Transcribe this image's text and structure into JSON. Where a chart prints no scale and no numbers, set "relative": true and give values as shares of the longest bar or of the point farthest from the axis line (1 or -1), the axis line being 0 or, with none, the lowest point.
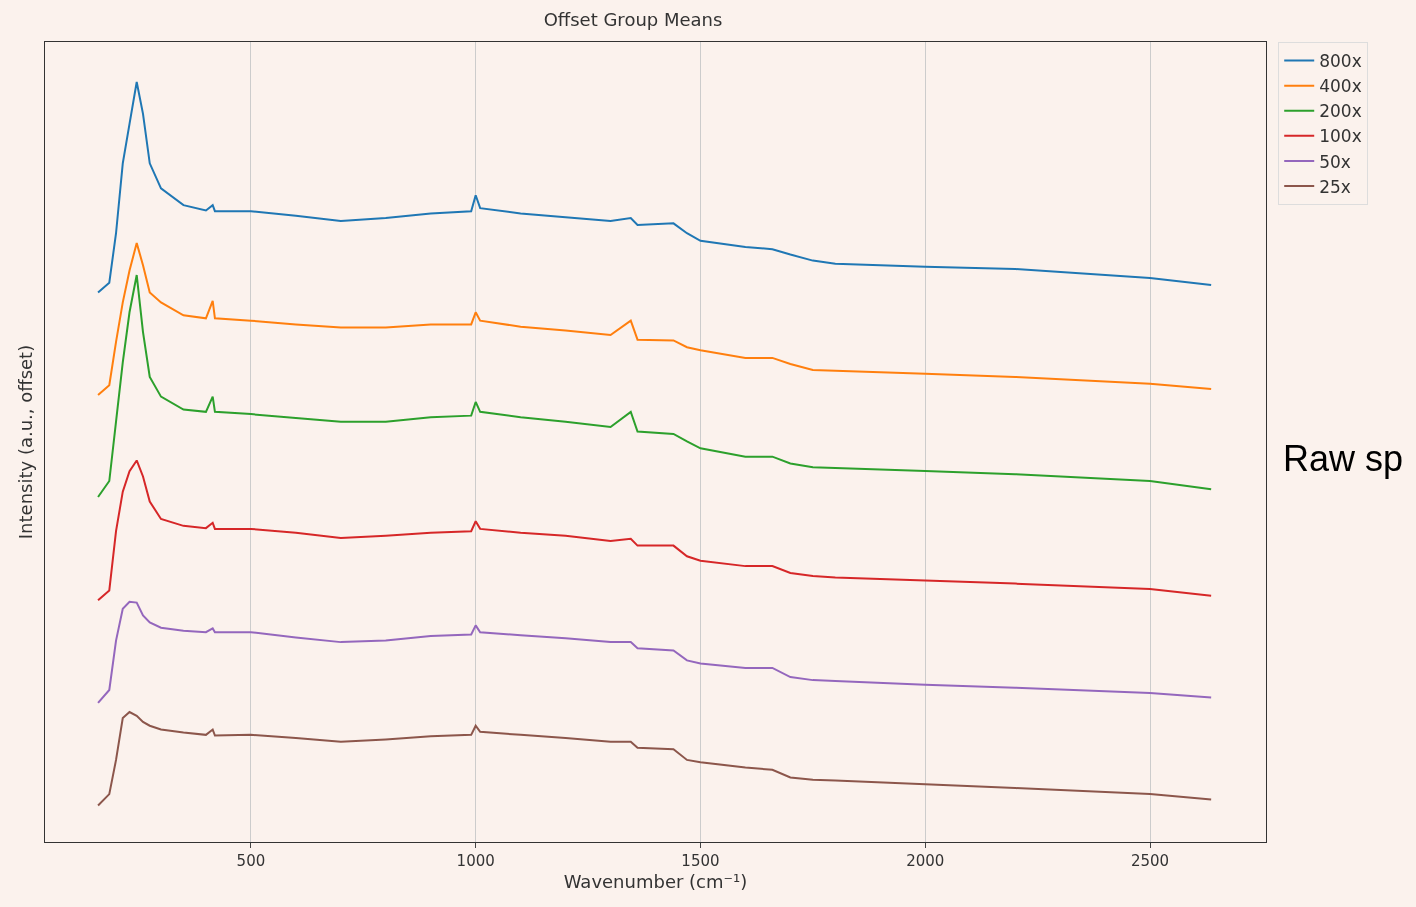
{
  "chart_data": {
    "type": "line",
    "title": "Offset Group Means",
    "xlabel": "Wavenumber (cm⁻¹)",
    "ylabel": "Intensity (a.u., offset)",
    "annotations": [
      "Raw sp"
    ],
    "relative": true,
    "xlim": [
      42,
      2758
    ],
    "xticks": [
      500,
      1000,
      1500,
      2000,
      2500
    ],
    "grid": "x",
    "legend": "top right",
    "line_style": "solid",
    "x": [
      160,
      185,
      200,
      215,
      230,
      246,
      260,
      275,
      300,
      350,
      400,
      415,
      420,
      500,
      600,
      700,
      800,
      900,
      990,
      1000,
      1010,
      1100,
      1200,
      1300,
      1345,
      1360,
      1440,
      1470,
      1500,
      1600,
      1660,
      1700,
      1750,
      1800,
      2000,
      2200,
      2500,
      2636
    ],
    "series": [
      {
        "name": "800x",
        "color": "#1f77b4",
        "values": [
          0.723,
          0.736,
          0.801,
          0.893,
          0.945,
          1,
          0.958,
          0.893,
          0.86,
          0.838,
          0.831,
          0.838,
          0.83,
          0.83,
          0.824,
          0.817,
          0.821,
          0.827,
          0.83,
          0.851,
          0.834,
          0.827,
          0.822,
          0.817,
          0.821,
          0.812,
          0.814,
          0.801,
          0.791,
          0.783,
          0.78,
          0.773,
          0.765,
          0.761,
          0.757,
          0.754,
          0.742,
          0.733
        ]
      },
      {
        "name": "400x",
        "color": "#ff7f0e",
        "values": [
          0.588,
          0.601,
          0.658,
          0.71,
          0.752,
          0.788,
          0.759,
          0.723,
          0.71,
          0.693,
          0.689,
          0.712,
          0.689,
          0.686,
          0.681,
          0.677,
          0.677,
          0.681,
          0.681,
          0.697,
          0.686,
          0.678,
          0.673,
          0.667,
          0.686,
          0.661,
          0.66,
          0.651,
          0.647,
          0.637,
          0.637,
          0.629,
          0.621,
          0.62,
          0.616,
          0.612,
          0.603,
          0.596
        ]
      },
      {
        "name": "200x",
        "color": "#2ca02c",
        "values": [
          0.454,
          0.475,
          0.553,
          0.631,
          0.697,
          0.746,
          0.671,
          0.612,
          0.586,
          0.569,
          0.566,
          0.586,
          0.566,
          0.563,
          0.558,
          0.553,
          0.553,
          0.559,
          0.561,
          0.579,
          0.566,
          0.559,
          0.553,
          0.546,
          0.566,
          0.54,
          0.537,
          0.527,
          0.518,
          0.507,
          0.507,
          0.498,
          0.493,
          0.492,
          0.488,
          0.484,
          0.475,
          0.464
        ]
      },
      {
        "name": "100x",
        "color": "#d62728",
        "values": [
          0.318,
          0.331,
          0.409,
          0.461,
          0.488,
          0.502,
          0.481,
          0.448,
          0.425,
          0.416,
          0.413,
          0.42,
          0.412,
          0.412,
          0.407,
          0.4,
          0.403,
          0.407,
          0.409,
          0.422,
          0.412,
          0.407,
          0.403,
          0.396,
          0.399,
          0.39,
          0.39,
          0.376,
          0.37,
          0.363,
          0.363,
          0.354,
          0.35,
          0.348,
          0.344,
          0.34,
          0.333,
          0.324
        ]
      },
      {
        "name": "50x",
        "color": "#9467bd",
        "values": [
          0.183,
          0.2,
          0.265,
          0.307,
          0.316,
          0.315,
          0.298,
          0.289,
          0.282,
          0.278,
          0.276,
          0.281,
          0.276,
          0.276,
          0.269,
          0.263,
          0.265,
          0.271,
          0.273,
          0.285,
          0.276,
          0.272,
          0.268,
          0.263,
          0.263,
          0.255,
          0.252,
          0.239,
          0.235,
          0.229,
          0.229,
          0.217,
          0.213,
          0.212,
          0.207,
          0.203,
          0.196,
          0.19
        ]
      },
      {
        "name": "25x",
        "color": "#8c564b",
        "values": [
          0.048,
          0.063,
          0.108,
          0.163,
          0.171,
          0.166,
          0.158,
          0.153,
          0.148,
          0.144,
          0.141,
          0.148,
          0.14,
          0.141,
          0.137,
          0.132,
          0.135,
          0.139,
          0.141,
          0.153,
          0.145,
          0.141,
          0.137,
          0.132,
          0.132,
          0.124,
          0.122,
          0.108,
          0.105,
          0.098,
          0.095,
          0.085,
          0.082,
          0.081,
          0.076,
          0.071,
          0.063,
          0.056
        ]
      }
    ]
  }
}
